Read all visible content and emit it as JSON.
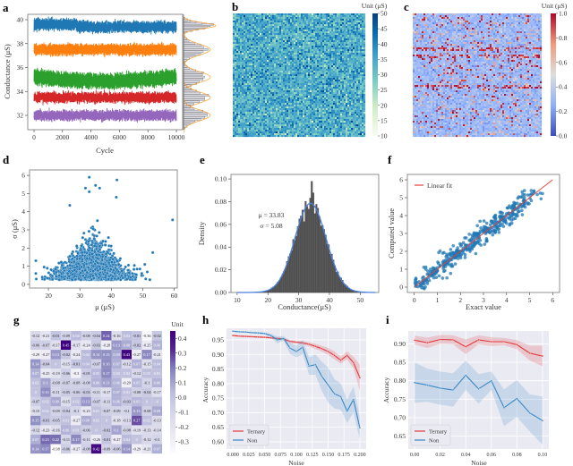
{
  "panel_labels": {
    "a": "a",
    "b": "b",
    "c": "c",
    "d": "d",
    "e": "e",
    "f": "f",
    "g": "g",
    "h": "h",
    "i": "i"
  },
  "chart_data": [
    {
      "panel": "a",
      "type": "line",
      "xlabel": "Cycle",
      "ylabel": "Conductance (μS)",
      "xlim": [
        0,
        10000
      ],
      "ylim": [
        30.8,
        40.5
      ],
      "xticks": [
        "0",
        "2000",
        "4000",
        "6000",
        "8000",
        "10000"
      ],
      "xtick_values": [
        0,
        2000,
        4000,
        6000,
        8000,
        10000
      ],
      "yticks": [
        "32",
        "34",
        "36",
        "38",
        "40"
      ],
      "ytick_values": [
        32,
        34,
        36,
        38,
        40
      ],
      "series": [
        {
          "color": "#1f77b4",
          "level_before_3000": 39.6,
          "level_after_3000": 39.4,
          "spread": 0.5
        },
        {
          "color": "#ff7f0e",
          "level": 37.5,
          "spread": 0.5
        },
        {
          "color": "#2ca02c",
          "level": 35.2,
          "spread": 0.7
        },
        {
          "color": "#d62728",
          "level": 33.5,
          "spread": 0.45
        },
        {
          "color": "#9467bd",
          "level": 32.0,
          "spread": 0.45
        }
      ],
      "marginal_histogram": {
        "bar_color": "#999999",
        "fit_color": "#ff9f2a"
      }
    },
    {
      "panel": "b",
      "type": "heatmap",
      "colorbar_label": "Unit (μS)",
      "colormap": "GnBu",
      "vmin": 10,
      "vmax": 50,
      "colorbar_ticks": [
        "50",
        "45",
        "40",
        "35",
        "30",
        "25",
        "20",
        "15",
        "10"
      ],
      "colorbar_tick_values": [
        50,
        45,
        40,
        35,
        30,
        25,
        20,
        15,
        10
      ]
    },
    {
      "panel": "c",
      "type": "heatmap",
      "colorbar_label": "Unit (μS)",
      "colormap": "coolwarm",
      "vmin": 0,
      "vmax": 1,
      "colorbar_ticks": [
        "1.0",
        "0.8",
        "0.6",
        "0.4",
        "0.2",
        "0.0"
      ],
      "colorbar_tick_values": [
        1,
        0.8,
        0.6,
        0.4,
        0.2,
        0
      ]
    },
    {
      "panel": "d",
      "type": "scatter",
      "xlabel": "μ (μS)",
      "ylabel": "σ (μS)",
      "xlim": [
        14,
        61
      ],
      "ylim": [
        -0.2,
        6.3
      ],
      "xticks": [
        "20",
        "30",
        "40",
        "50",
        "60"
      ],
      "xtick_values": [
        20,
        30,
        40,
        50,
        60
      ],
      "yticks": [
        "0",
        "1",
        "2",
        "3",
        "4",
        "5",
        "6"
      ],
      "ytick_values": [
        0,
        1,
        2,
        3,
        4,
        5,
        6
      ],
      "color": "#1f77b4",
      "notable_points": [
        [
          33,
          5.9
        ],
        [
          41.8,
          5.75
        ],
        [
          35,
          5.45
        ],
        [
          31.8,
          5.3
        ],
        [
          36.3,
          5.3
        ],
        [
          33,
          5.1
        ],
        [
          41.6,
          4.8
        ],
        [
          26.8,
          4.35
        ],
        [
          59.5,
          3.55
        ],
        [
          16,
          1.3
        ],
        [
          16,
          0.6
        ],
        [
          53.2,
          1.75
        ]
      ]
    },
    {
      "panel": "e",
      "type": "bar",
      "xlabel": "Conductance(μS)",
      "ylabel": "Density",
      "xlim": [
        8,
        56
      ],
      "ylim": [
        0,
        0.104
      ],
      "xticks": [
        "10",
        "20",
        "30",
        "40",
        "50"
      ],
      "xtick_values": [
        10,
        20,
        30,
        40,
        50
      ],
      "yticks": [
        "0.00",
        "0.02",
        "0.04",
        "0.06",
        "0.08",
        "0.10"
      ],
      "ytick_values": [
        0,
        0.02,
        0.04,
        0.06,
        0.08,
        0.1
      ],
      "annotation": [
        "μ = 33.83",
        "σ = 5.08"
      ],
      "mu": 33.83,
      "sigma": 5.08,
      "bar_color": "#595959",
      "fit_color": "#4a7fe0"
    },
    {
      "panel": "f",
      "type": "scatter",
      "xlabel": "Exact value",
      "ylabel": "Computed value",
      "xlim": [
        -0.3,
        6.3
      ],
      "ylim": [
        -0.3,
        6.3
      ],
      "xticks": [
        "0",
        "1",
        "2",
        "3",
        "4",
        "5",
        "6"
      ],
      "xtick_values": [
        0,
        1,
        2,
        3,
        4,
        5,
        6
      ],
      "yticks": [
        "0",
        "1",
        "2",
        "3",
        "4",
        "5",
        "6"
      ],
      "ytick_values": [
        0,
        1,
        2,
        3,
        4,
        5,
        6
      ],
      "legend": "Linear fit",
      "fit": {
        "slope": 1,
        "intercept": 0,
        "x": [
          0,
          6
        ]
      },
      "point_color": "#1f77b4",
      "fit_color": "#e8403a",
      "legend_position": "top-left"
    },
    {
      "panel": "g",
      "type": "heatmap",
      "colorbar_label": "Unit",
      "colormap": "Purples",
      "vmin": -0.38,
      "vmax": 0.45,
      "colorbar_ticks": [
        "0.4",
        "0.3",
        "0.2",
        "0.1",
        "0.0",
        "-0.1",
        "-0.2",
        "-0.3"
      ],
      "colorbar_tick_values": [
        0.4,
        0.3,
        0.2,
        0.1,
        0,
        -0.1,
        -0.2,
        -0.3
      ],
      "values": [
        [
          "-0.12",
          "-0.21",
          "-0.01",
          "-0.09",
          "0.04",
          "-0.08",
          "-0.04",
          "0.24",
          "-0.16",
          "0.03",
          "-0.01",
          "-0.36",
          "-0.02"
        ],
        [
          "-0.06",
          "-0.07",
          "-0.17",
          "0.45",
          "-0.17",
          "-0.24",
          "-0.03",
          "-0.28",
          "0.13",
          "0.08",
          "-0.02",
          "-0.25",
          "0.06"
        ],
        [
          "-0.29",
          "-0.27",
          "0.13",
          "-0.02",
          "-0.24",
          "0.04",
          "0.14",
          "0.15",
          "0.09",
          "0.43",
          "-0.27",
          "0.17",
          "-0.21"
        ],
        [
          "0.14",
          "-0.04",
          "0",
          "-0.15",
          "-0.01",
          "0.04",
          "-0.07",
          "0.16",
          "0.07",
          "-0.12",
          "0.07",
          "-0.15",
          "0.04"
        ],
        [
          "0.07",
          "-0.25",
          "-0.19",
          "-0.06",
          "-0.3",
          "-0.05",
          "0.05",
          "0.17",
          "0.02",
          "0.02",
          "-0.12",
          "0.03",
          "0.01"
        ],
        [
          "0.02",
          "0.1",
          "-0.08",
          "-0.07",
          "-0.08",
          "-0.08",
          "0.06",
          "0.11",
          "0.06",
          "-0.29",
          "0.05",
          "-0.1",
          "0.06"
        ],
        [
          "0",
          "0.16",
          "-0.11",
          "-0.05",
          "-0.06",
          "-0.03",
          "-0.11",
          "-0.17",
          "0.07",
          "0.01",
          "-0.08",
          "-0.04",
          "-0.17"
        ],
        [
          "-0.07",
          "0.02",
          "0.09",
          "-0.15",
          "0.02",
          "0.13",
          "-0.07",
          "-0.11",
          "0.06",
          "-0.03",
          "0.05",
          "0",
          "-0"
        ],
        [
          "-0.15",
          "0.02",
          "-0.09",
          "-0.04",
          "-0.1",
          "-0.23",
          "0.01",
          "-0.07",
          "-0.09",
          "-0.1",
          "0.13",
          "-0.08",
          "0.09"
        ],
        [
          "0.15",
          "-0.01",
          "-0.05",
          "0.01",
          "-0.27",
          "0.08",
          "0.02",
          "0",
          "-0.18",
          "-0.13",
          "0.27",
          "0.02",
          "-0.13"
        ],
        [
          "-0.12",
          "-0.23",
          "-0.16",
          "0.06",
          "0.01",
          "-0.06",
          "0",
          "-0.02",
          "0.1",
          "-0.08",
          "-0.19",
          "-0.13",
          "-0.14"
        ],
        [
          "0.07",
          "0.23",
          "0.22",
          "-0.11",
          "0.17",
          "-0.11",
          "-0.26",
          "-0.01",
          "-0.27",
          "0.04",
          "0",
          "-0.12",
          "-0.1"
        ],
        [
          "0.14",
          "0.17",
          "-0.38",
          "-0.06",
          "-0.27",
          "-0.08",
          "0.42",
          "-0.09",
          "-0.06",
          "0.14",
          "-0.29",
          "-0.21",
          "0.07"
        ]
      ]
    },
    {
      "panel": "h",
      "type": "line",
      "xlabel": "Noise",
      "ylabel": "Accuracy",
      "xlim": [
        -0.01,
        0.21
      ],
      "ylim": [
        0.575,
        0.99
      ],
      "xticks": [
        "0.000",
        "0.025",
        "0.050",
        "0.075",
        "0.100",
        "0.125",
        "0.150",
        "0.175",
        "0.200"
      ],
      "xtick_values": [
        0,
        0.025,
        0.05,
        0.075,
        0.1,
        0.125,
        0.15,
        0.175,
        0.2
      ],
      "yticks": [
        "0.95",
        "0.90",
        "0.85",
        "0.80",
        "0.75",
        "0.70",
        "0.65",
        "0.60"
      ],
      "ytick_values": [
        0.95,
        0.9,
        0.85,
        0.8,
        0.75,
        0.7,
        0.65,
        0.6
      ],
      "x": [
        0,
        0.01,
        0.02,
        0.03,
        0.04,
        0.05,
        0.06,
        0.07,
        0.08,
        0.09,
        0.1,
        0.11,
        0.12,
        0.13,
        0.14,
        0.15,
        0.16,
        0.17,
        0.18,
        0.19,
        0.2
      ],
      "legend_position": "bottom-left",
      "background": "#eaeaf2",
      "series": [
        {
          "name": "Ternary",
          "color": "#e0393e",
          "values": [
            0.965,
            0.963,
            0.962,
            0.961,
            0.96,
            0.959,
            0.957,
            0.955,
            0.953,
            0.945,
            0.942,
            0.94,
            0.935,
            0.928,
            0.92,
            0.91,
            0.897,
            0.88,
            0.897,
            0.872,
            0.82
          ],
          "ci": [
            0.003,
            0.003,
            0.003,
            0.003,
            0.003,
            0.003,
            0.004,
            0.004,
            0.004,
            0.005,
            0.005,
            0.006,
            0.007,
            0.009,
            0.01,
            0.012,
            0.014,
            0.012,
            0.014,
            0.02,
            0.045
          ]
        },
        {
          "name": "Non",
          "color": "#3a88c4",
          "values": [
            0.98,
            0.978,
            0.977,
            0.975,
            0.974,
            0.972,
            0.965,
            0.95,
            0.955,
            0.922,
            0.91,
            0.925,
            0.86,
            0.865,
            0.825,
            0.795,
            0.765,
            0.755,
            0.705,
            0.745,
            0.648
          ],
          "ci": [
            0.002,
            0.002,
            0.002,
            0.003,
            0.003,
            0.004,
            0.006,
            0.012,
            0.008,
            0.02,
            0.02,
            0.025,
            0.03,
            0.035,
            0.05,
            0.06,
            0.05,
            0.045,
            0.04,
            0.045,
            0.04
          ]
        }
      ]
    },
    {
      "panel": "i",
      "type": "line",
      "xlabel": "Noise",
      "ylabel": "Accuracy",
      "xlim": [
        -0.005,
        0.105
      ],
      "ylim": [
        0.615,
        0.935
      ],
      "xticks": [
        "0.00",
        "0.02",
        "0.04",
        "0.06",
        "0.08",
        "0.10"
      ],
      "xtick_values": [
        0,
        0.02,
        0.04,
        0.06,
        0.08,
        0.1
      ],
      "yticks": [
        "0.90",
        "0.85",
        "0.80",
        "0.75",
        "0.70",
        "0.65"
      ],
      "ytick_values": [
        0.9,
        0.85,
        0.8,
        0.75,
        0.7,
        0.65
      ],
      "x": [
        0,
        0.01,
        0.02,
        0.03,
        0.04,
        0.05,
        0.06,
        0.07,
        0.08,
        0.09,
        0.1
      ],
      "legend_position": "bottom-left",
      "background": "#eaeaf2",
      "series": [
        {
          "name": "Ternary",
          "color": "#e0393e",
          "values": [
            0.91,
            0.903,
            0.912,
            0.911,
            0.892,
            0.911,
            0.906,
            0.906,
            0.898,
            0.875,
            0.867
          ],
          "ci": [
            0.012,
            0.014,
            0.012,
            0.012,
            0.02,
            0.012,
            0.012,
            0.01,
            0.012,
            0.02,
            0.028
          ]
        },
        {
          "name": "Non",
          "color": "#3a88c4",
          "values": [
            0.795,
            0.788,
            0.78,
            0.775,
            0.815,
            0.778,
            0.8,
            0.727,
            0.752,
            0.713,
            0.692
          ],
          "ci": [
            0.055,
            0.045,
            0.045,
            0.045,
            0.04,
            0.04,
            0.025,
            0.05,
            0.05,
            0.05,
            0.065
          ]
        }
      ]
    }
  ]
}
